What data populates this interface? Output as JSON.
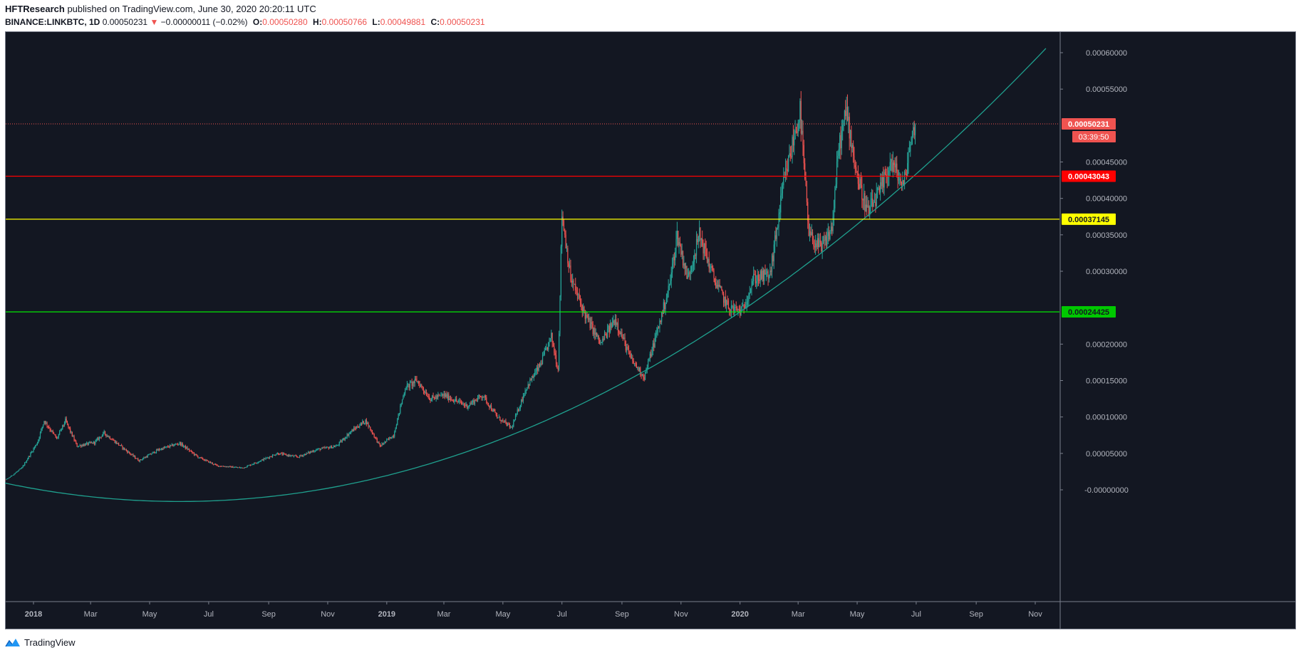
{
  "header": {
    "author": "HFTResearch",
    "published": "published on TradingView.com, June 30, 2020 20:20:11 UTC",
    "symbol": "BINANCE:LINKBTC, 1D",
    "last": "0.00050231",
    "change": "−0.00000011 (−0.02%)",
    "open_label": "O:",
    "open": "0.00050280",
    "high_label": "H:",
    "high": "0.00050766",
    "low_label": "L:",
    "low": "0.00049881",
    "close_label": "C:",
    "close": "0.00050231"
  },
  "footer": {
    "brand": "TradingView"
  },
  "colors": {
    "background": "#131722",
    "up": "#26a69a",
    "down": "#ef5350",
    "curve": "#1fa08e",
    "red_line": "#ff0000",
    "yellow_line": "#ffff00",
    "green_line": "#00ff00"
  },
  "chart_data": {
    "type": "candlestick",
    "ylim": [
      -0.0,
      0.0006
    ],
    "y_ticks": [
      "0.00060000",
      "0.00055000",
      "0.00045000",
      "0.00040000",
      "0.00035000",
      "0.00030000",
      "0.00020000",
      "0.00015000",
      "0.00010000",
      "0.00005000",
      "-0.00000000"
    ],
    "x_ticks": [
      {
        "date": "2018-01-01",
        "label": "2018",
        "bold": true
      },
      {
        "date": "2018-03-01",
        "label": "Mar"
      },
      {
        "date": "2018-05-01",
        "label": "May"
      },
      {
        "date": "2018-07-01",
        "label": "Jul"
      },
      {
        "date": "2018-09-01",
        "label": "Sep"
      },
      {
        "date": "2018-11-01",
        "label": "Nov"
      },
      {
        "date": "2019-01-01",
        "label": "2019",
        "bold": true
      },
      {
        "date": "2019-03-01",
        "label": "Mar"
      },
      {
        "date": "2019-05-01",
        "label": "May"
      },
      {
        "date": "2019-07-01",
        "label": "Jul"
      },
      {
        "date": "2019-09-01",
        "label": "Sep"
      },
      {
        "date": "2019-11-01",
        "label": "Nov"
      },
      {
        "date": "2020-01-01",
        "label": "2020",
        "bold": true
      },
      {
        "date": "2020-03-01",
        "label": "Mar"
      },
      {
        "date": "2020-05-01",
        "label": "May"
      },
      {
        "date": "2020-07-01",
        "label": "Jul"
      },
      {
        "date": "2020-09-01",
        "label": "Sep"
      },
      {
        "date": "2020-11-01",
        "label": "Nov"
      }
    ],
    "horizontal_lines": [
      {
        "value": 0.00043043,
        "label": "0.00043043",
        "color": "#ff0000",
        "label_bg": "#ff0000",
        "label_color": "#ffffff"
      },
      {
        "value": 0.00037145,
        "label": "0.00037145",
        "color": "#ffff00",
        "label_bg": "#ffff00",
        "label_color": "#131722"
      },
      {
        "value": 0.00024425,
        "label": "0.00024425",
        "color": "#00ff00",
        "label_bg": "#00c800",
        "label_color": "#131722"
      }
    ],
    "last_price": {
      "value": 0.00050231,
      "label": "0.00050231",
      "countdown": "03:39:50"
    },
    "price_path": [
      [
        "2017-11-20",
        8e-06
      ],
      [
        "2017-12-05",
        1.5e-05
      ],
      [
        "2017-12-20",
        3e-05
      ],
      [
        "2018-01-05",
        6.5e-05
      ],
      [
        "2018-01-12",
        9.5e-05
      ],
      [
        "2018-01-25",
        7e-05
      ],
      [
        "2018-02-03",
        9.5e-05
      ],
      [
        "2018-02-15",
        6e-05
      ],
      [
        "2018-03-05",
        6.5e-05
      ],
      [
        "2018-03-15",
        7.8e-05
      ],
      [
        "2018-04-01",
        6e-05
      ],
      [
        "2018-04-20",
        4e-05
      ],
      [
        "2018-05-10",
        5.5e-05
      ],
      [
        "2018-06-01",
        6.4e-05
      ],
      [
        "2018-06-20",
        4.5e-05
      ],
      [
        "2018-07-10",
        3.3e-05
      ],
      [
        "2018-08-05",
        3e-05
      ],
      [
        "2018-08-20",
        3.8e-05
      ],
      [
        "2018-09-10",
        5e-05
      ],
      [
        "2018-10-01",
        4.5e-05
      ],
      [
        "2018-10-20",
        5.5e-05
      ],
      [
        "2018-11-10",
        6e-05
      ],
      [
        "2018-11-25",
        8e-05
      ],
      [
        "2018-12-10",
        9.5e-05
      ],
      [
        "2018-12-25",
        6e-05
      ],
      [
        "2019-01-08",
        7.5e-05
      ],
      [
        "2019-01-20",
        0.00014
      ],
      [
        "2019-02-01",
        0.00015
      ],
      [
        "2019-02-15",
        0.000125
      ],
      [
        "2019-03-01",
        0.00013
      ],
      [
        "2019-03-25",
        0.000115
      ],
      [
        "2019-04-10",
        0.00013
      ],
      [
        "2019-04-25",
        0.0001
      ],
      [
        "2019-05-10",
        8.5e-05
      ],
      [
        "2019-05-25",
        0.00014
      ],
      [
        "2019-06-08",
        0.00017
      ],
      [
        "2019-06-20",
        0.00021
      ],
      [
        "2019-06-27",
        0.000165
      ],
      [
        "2019-07-01",
        0.00038
      ],
      [
        "2019-07-10",
        0.00029
      ],
      [
        "2019-07-25",
        0.00024
      ],
      [
        "2019-08-10",
        0.0002
      ],
      [
        "2019-08-25",
        0.000235
      ],
      [
        "2019-09-10",
        0.00018
      ],
      [
        "2019-09-24",
        0.000155
      ],
      [
        "2019-10-08",
        0.00022
      ],
      [
        "2019-10-20",
        0.00028
      ],
      [
        "2019-10-28",
        0.00035
      ],
      [
        "2019-11-08",
        0.00029
      ],
      [
        "2019-11-20",
        0.00035
      ],
      [
        "2019-12-05",
        0.00029
      ],
      [
        "2019-12-20",
        0.00025
      ],
      [
        "2020-01-03",
        0.000245
      ],
      [
        "2020-01-15",
        0.00029
      ],
      [
        "2020-02-01",
        0.000295
      ],
      [
        "2020-02-15",
        0.00042
      ],
      [
        "2020-03-03",
        0.00052
      ],
      [
        "2020-03-12",
        0.00035
      ],
      [
        "2020-03-25",
        0.00033
      ],
      [
        "2020-04-05",
        0.00036
      ],
      [
        "2020-04-12",
        0.00047
      ],
      [
        "2020-04-20",
        0.00052
      ],
      [
        "2020-05-01",
        0.00043
      ],
      [
        "2020-05-12",
        0.00038
      ],
      [
        "2020-05-25",
        0.00041
      ],
      [
        "2020-06-05",
        0.00045
      ],
      [
        "2020-06-18",
        0.000415
      ],
      [
        "2020-06-24",
        0.00047
      ],
      [
        "2020-06-30",
        0.0005023
      ]
    ],
    "curve": {
      "from": "2017-11-20",
      "to": "2020-11-15",
      "vertex_date": "2018-06-01",
      "vertex_value": -1.6e-05,
      "anchor_date": "2020-01-01",
      "anchor_value": 0.00024425
    }
  }
}
